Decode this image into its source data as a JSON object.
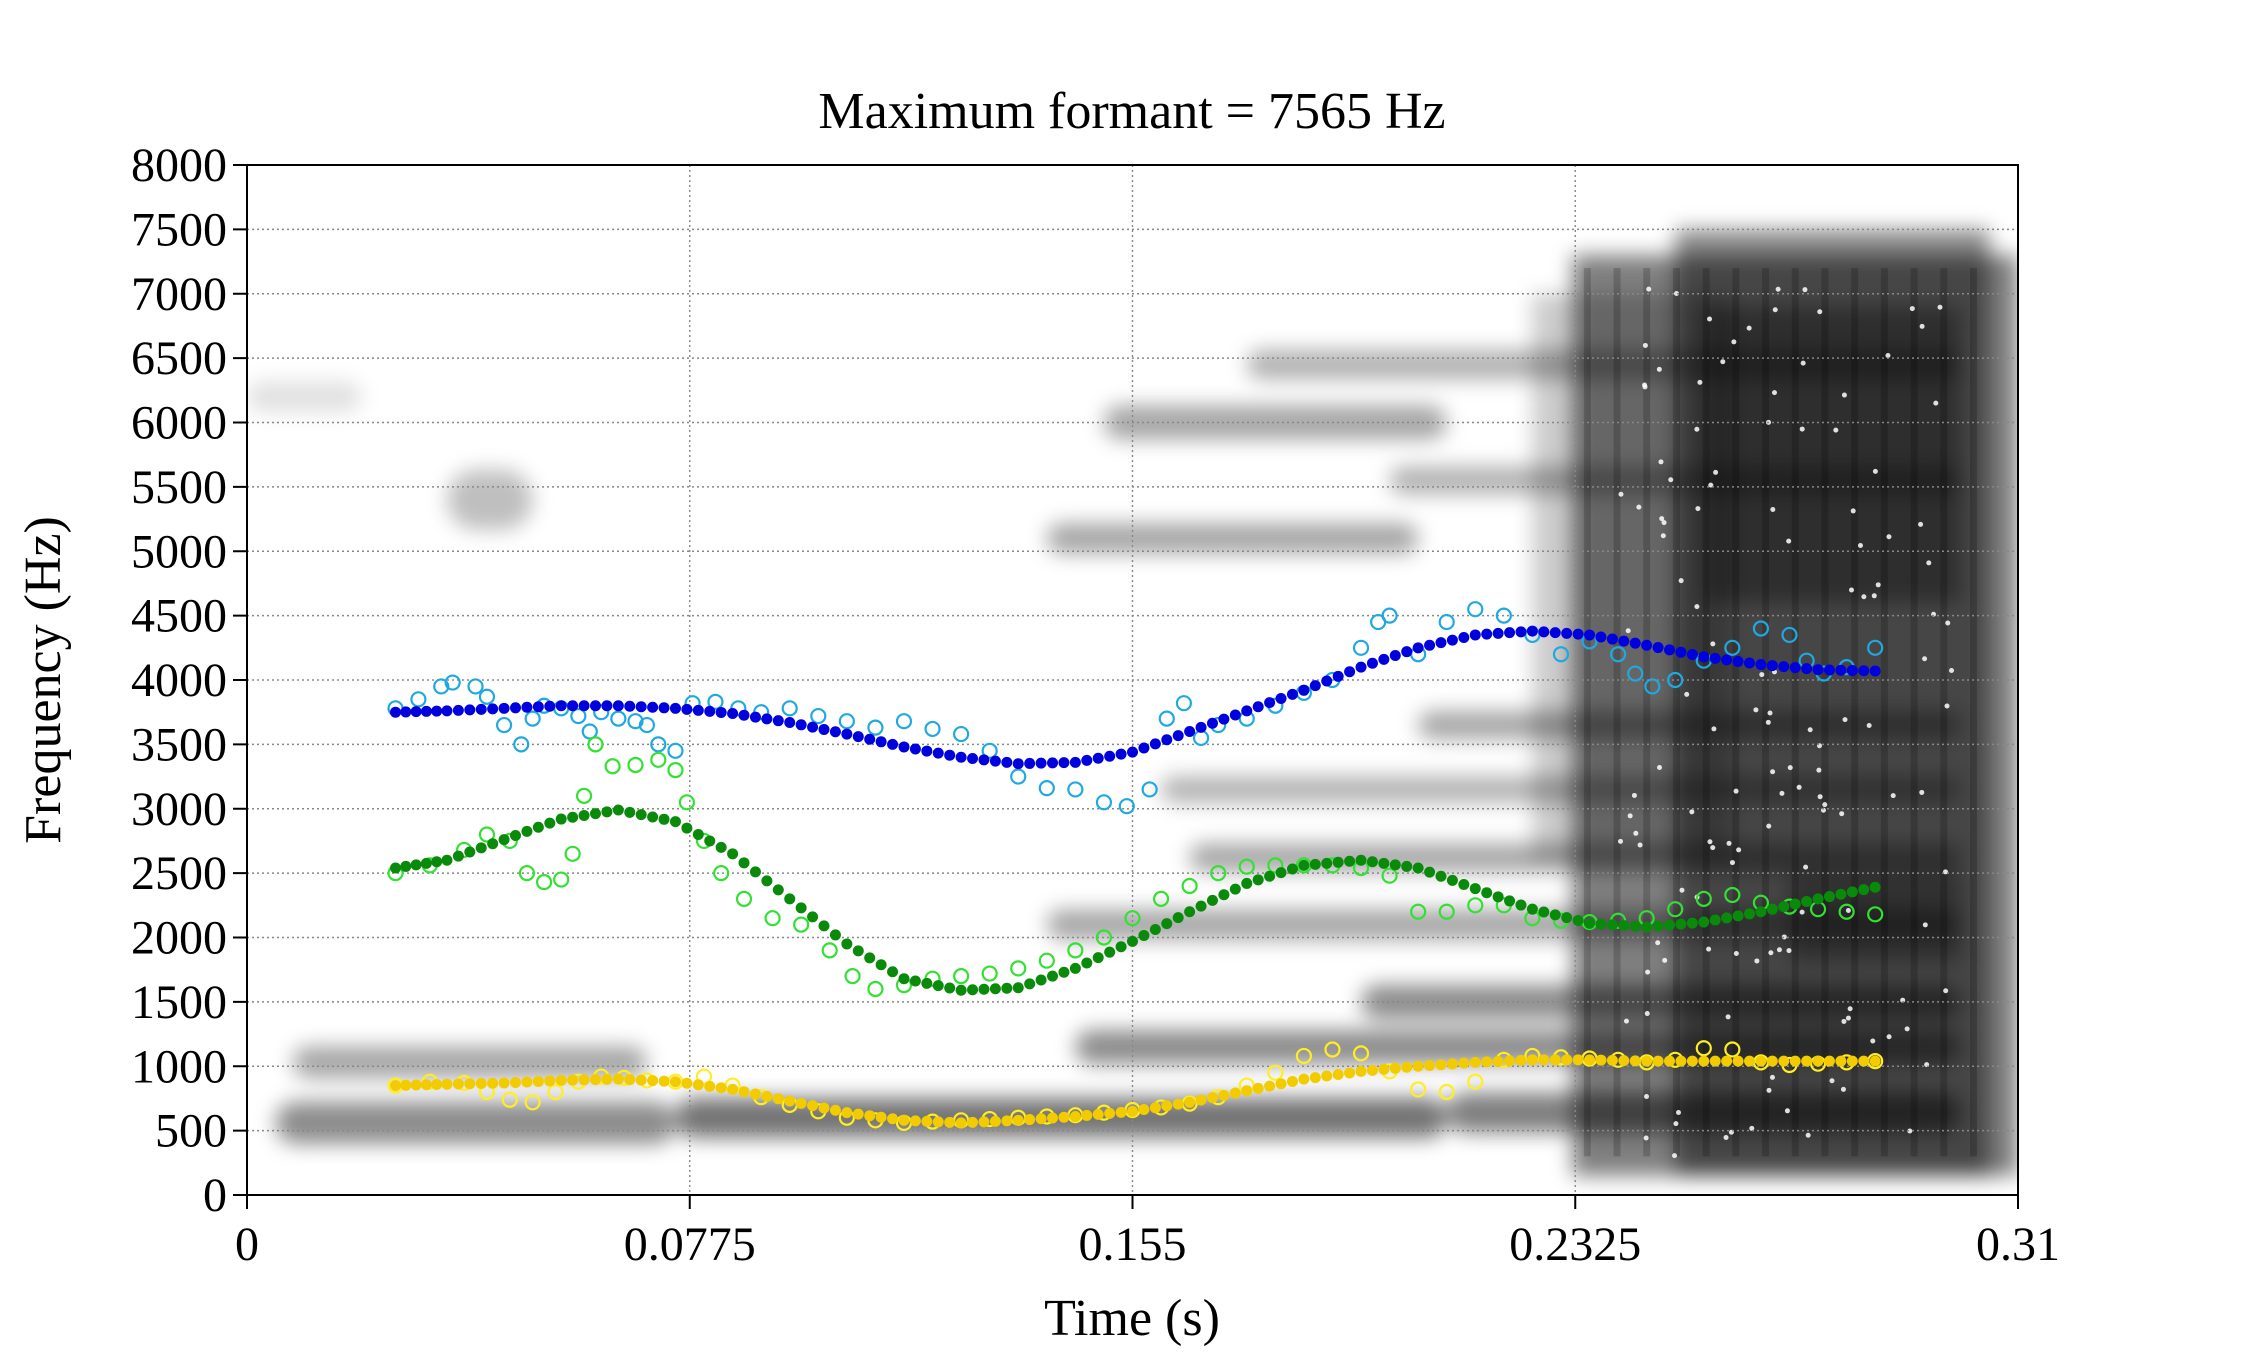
{
  "chart_data": {
    "type": "scatter",
    "title": "Maximum formant = 7565 Hz",
    "xlabel": "Time (s)",
    "ylabel": "Frequency (Hz)",
    "xlim": [
      0,
      0.31
    ],
    "ylim": [
      0,
      8000
    ],
    "x_ticks": [
      "0",
      "0.0775",
      "0.155",
      "0.2325",
      "0.31"
    ],
    "y_ticks": [
      "0",
      "500",
      "1000",
      "1500",
      "2000",
      "2500",
      "3000",
      "3500",
      "4000",
      "4500",
      "5000",
      "5500",
      "6000",
      "6500",
      "7000",
      "7500",
      "8000"
    ],
    "grid": true,
    "background": "grayscale spectrogram",
    "colors": {
      "f1_raw": "#ffee22",
      "f1_smooth": "#f2cc00",
      "f2_raw": "#33e033",
      "f2_smooth": "#0a8a0a",
      "f3_raw": "#20a8e0",
      "f3_smooth": "#0000dd"
    },
    "series": [
      {
        "key": "f3_raw",
        "style": "open-circle",
        "x": [
          0.026,
          0.03,
          0.034,
          0.036,
          0.04,
          0.042,
          0.045,
          0.048,
          0.05,
          0.052,
          0.055,
          0.058,
          0.06,
          0.062,
          0.065,
          0.068,
          0.07,
          0.072,
          0.075,
          0.078,
          0.082,
          0.086,
          0.09,
          0.095,
          0.1,
          0.105,
          0.11,
          0.115,
          0.12,
          0.125,
          0.13,
          0.135,
          0.14,
          0.145,
          0.15,
          0.154,
          0.158,
          0.161,
          0.164,
          0.167,
          0.17,
          0.175,
          0.18,
          0.185,
          0.19,
          0.195,
          0.198,
          0.2,
          0.205,
          0.21,
          0.215,
          0.22,
          0.225,
          0.23,
          0.235,
          0.24,
          0.243,
          0.246,
          0.25,
          0.255,
          0.26,
          0.265,
          0.27,
          0.273,
          0.276,
          0.28,
          0.285
        ],
        "y": [
          3780,
          3850,
          3950,
          3980,
          3950,
          3870,
          3650,
          3500,
          3700,
          3800,
          3780,
          3720,
          3600,
          3750,
          3700,
          3680,
          3650,
          3500,
          3450,
          3820,
          3830,
          3780,
          3750,
          3780,
          3720,
          3680,
          3630,
          3680,
          3620,
          3580,
          3450,
          3250,
          3160,
          3150,
          3050,
          3020,
          3150,
          3700,
          3820,
          3550,
          3650,
          3700,
          3800,
          3900,
          4000,
          4250,
          4450,
          4500,
          4200,
          4450,
          4550,
          4500,
          4350,
          4200,
          4300,
          4200,
          4050,
          3950,
          4000,
          4150,
          4250,
          4400,
          4350,
          4150,
          4050,
          4100,
          4250
        ]
      },
      {
        "key": "f3_smooth",
        "style": "filled-circle",
        "x": [
          0.026,
          0.035,
          0.045,
          0.055,
          0.065,
          0.075,
          0.085,
          0.095,
          0.105,
          0.115,
          0.125,
          0.135,
          0.145,
          0.155,
          0.165,
          0.175,
          0.185,
          0.195,
          0.205,
          0.215,
          0.225,
          0.235,
          0.245,
          0.255,
          0.265,
          0.275,
          0.285
        ],
        "y": [
          3750,
          3760,
          3780,
          3800,
          3800,
          3780,
          3740,
          3670,
          3580,
          3480,
          3400,
          3350,
          3360,
          3440,
          3600,
          3760,
          3920,
          4100,
          4250,
          4350,
          4380,
          4350,
          4270,
          4180,
          4120,
          4080,
          4070
        ]
      },
      {
        "key": "f2_raw",
        "style": "open-circle",
        "x": [
          0.026,
          0.032,
          0.038,
          0.042,
          0.046,
          0.049,
          0.052,
          0.055,
          0.057,
          0.059,
          0.061,
          0.064,
          0.068,
          0.072,
          0.075,
          0.077,
          0.08,
          0.083,
          0.087,
          0.092,
          0.097,
          0.102,
          0.106,
          0.11,
          0.115,
          0.12,
          0.125,
          0.13,
          0.135,
          0.14,
          0.145,
          0.15,
          0.155,
          0.16,
          0.165,
          0.17,
          0.175,
          0.18,
          0.185,
          0.19,
          0.195,
          0.2,
          0.205,
          0.21,
          0.215,
          0.22,
          0.225,
          0.23,
          0.235,
          0.24,
          0.245,
          0.25,
          0.255,
          0.26,
          0.265,
          0.27,
          0.275,
          0.28,
          0.285
        ],
        "y": [
          2500,
          2560,
          2680,
          2800,
          2750,
          2500,
          2430,
          2450,
          2650,
          3100,
          3500,
          3330,
          3340,
          3380,
          3300,
          3050,
          2750,
          2500,
          2300,
          2150,
          2100,
          1900,
          1700,
          1600,
          1630,
          1680,
          1700,
          1720,
          1760,
          1820,
          1900,
          2000,
          2150,
          2300,
          2400,
          2500,
          2550,
          2560,
          2560,
          2560,
          2540,
          2480,
          2200,
          2200,
          2250,
          2250,
          2150,
          2130,
          2120,
          2130,
          2150,
          2220,
          2300,
          2330,
          2270,
          2240,
          2220,
          2200,
          2180
        ]
      },
      {
        "key": "f2_smooth",
        "style": "filled-circle",
        "x": [
          0.026,
          0.035,
          0.045,
          0.055,
          0.065,
          0.075,
          0.085,
          0.095,
          0.105,
          0.115,
          0.125,
          0.135,
          0.145,
          0.155,
          0.165,
          0.175,
          0.185,
          0.195,
          0.205,
          0.215,
          0.225,
          0.235,
          0.245,
          0.255,
          0.265,
          0.275,
          0.285
        ],
        "y": [
          2540,
          2600,
          2760,
          2920,
          2990,
          2900,
          2650,
          2300,
          1950,
          1680,
          1590,
          1610,
          1760,
          1970,
          2200,
          2420,
          2560,
          2600,
          2540,
          2380,
          2220,
          2110,
          2080,
          2120,
          2200,
          2300,
          2390
        ]
      },
      {
        "key": "f1_raw",
        "style": "open-circle",
        "x": [
          0.026,
          0.032,
          0.038,
          0.042,
          0.046,
          0.05,
          0.054,
          0.058,
          0.062,
          0.066,
          0.07,
          0.075,
          0.08,
          0.085,
          0.09,
          0.095,
          0.1,
          0.105,
          0.11,
          0.115,
          0.12,
          0.125,
          0.13,
          0.135,
          0.14,
          0.145,
          0.15,
          0.155,
          0.16,
          0.165,
          0.17,
          0.175,
          0.18,
          0.185,
          0.19,
          0.195,
          0.2,
          0.205,
          0.21,
          0.215,
          0.22,
          0.225,
          0.23,
          0.235,
          0.24,
          0.245,
          0.25,
          0.255,
          0.26,
          0.265,
          0.27,
          0.275,
          0.28,
          0.285
        ],
        "y": [
          850,
          880,
          870,
          800,
          740,
          720,
          800,
          880,
          920,
          910,
          890,
          880,
          920,
          850,
          760,
          700,
          650,
          600,
          580,
          560,
          570,
          580,
          590,
          600,
          610,
          620,
          640,
          660,
          680,
          710,
          760,
          850,
          950,
          1080,
          1130,
          1100,
          960,
          820,
          800,
          880,
          1050,
          1080,
          1070,
          1060,
          1050,
          1030,
          1050,
          1140,
          1130,
          1030,
          1010,
          1020,
          1030,
          1040
        ]
      },
      {
        "key": "f1_smooth",
        "style": "filled-circle",
        "x": [
          0.026,
          0.035,
          0.045,
          0.055,
          0.065,
          0.075,
          0.085,
          0.095,
          0.105,
          0.115,
          0.125,
          0.135,
          0.145,
          0.155,
          0.165,
          0.175,
          0.185,
          0.195,
          0.205,
          0.215,
          0.225,
          0.235,
          0.245,
          0.255,
          0.265,
          0.275,
          0.285
        ],
        "y": [
          850,
          860,
          870,
          890,
          900,
          880,
          820,
          730,
          640,
          580,
          560,
          580,
          610,
          650,
          720,
          810,
          900,
          960,
          1000,
          1030,
          1050,
          1050,
          1040,
          1040,
          1040,
          1040,
          1040
        ]
      }
    ]
  }
}
